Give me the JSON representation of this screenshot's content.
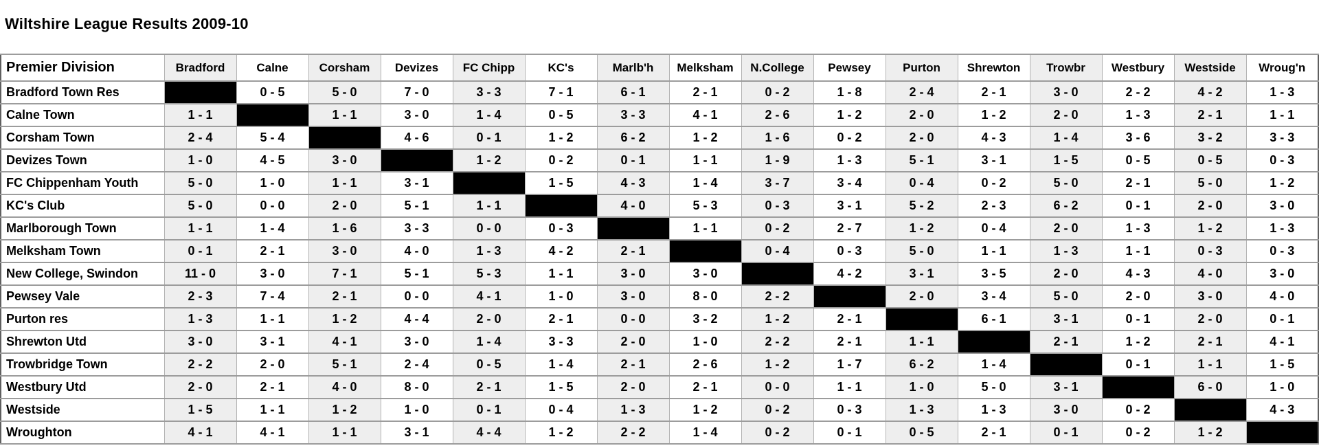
{
  "title": "Wiltshire League Results 2009-10",
  "colors": {
    "shaded_column_bg": "#eeeeee",
    "diagonal_cell_bg": "#000000",
    "horizontal_grid_line": "#9c9c9c",
    "vertical_grid_line": "#b3b3b3"
  },
  "table": {
    "corner_label": "Premier Division",
    "columns": [
      "Bradford",
      "Calne",
      "Corsham",
      "Devizes",
      "FC Chipp",
      "KC's",
      "Marlb'h",
      "Melksham",
      "N.College",
      "Pewsey",
      "Purton",
      "Shrewton",
      "Trowbr",
      "Westbury",
      "Westside",
      "Wroug'n"
    ],
    "rows": [
      {
        "team": "Bradford Town Res",
        "scores": [
          null,
          "0 - 5",
          "5 - 0",
          "7 - 0",
          "3 - 3",
          "7 - 1",
          "6 - 1",
          "2 - 1",
          "0 - 2",
          "1 - 8",
          "2 - 4",
          "2 - 1",
          "3 - 0",
          "2 - 2",
          "4 - 2",
          "1 - 3"
        ]
      },
      {
        "team": "Calne Town",
        "scores": [
          "1 - 1",
          null,
          "1 - 1",
          "3 - 0",
          "1 - 4",
          "0 - 5",
          "3 - 3",
          "4 - 1",
          "2 - 6",
          "1 - 2",
          "2 - 0",
          "1 - 2",
          "2 - 0",
          "1 - 3",
          "2 - 1",
          "1 - 1"
        ]
      },
      {
        "team": "Corsham Town",
        "scores": [
          "2 - 4",
          "5 - 4",
          null,
          "4 - 6",
          "0 - 1",
          "1 - 2",
          "6 - 2",
          "1 - 2",
          "1 - 6",
          "0 - 2",
          "2 - 0",
          "4 - 3",
          "1 - 4",
          "3 - 6",
          "3 - 2",
          "3 - 3"
        ]
      },
      {
        "team": "Devizes Town",
        "scores": [
          "1 - 0",
          "4 - 5",
          "3 - 0",
          null,
          "1 - 2",
          "0 - 2",
          "0 - 1",
          "1 - 1",
          "1 - 9",
          "1 - 3",
          "5 - 1",
          "3 - 1",
          "1 - 5",
          "0 - 5",
          "0 - 5",
          "0 - 3"
        ]
      },
      {
        "team": "FC Chippenham Youth",
        "scores": [
          "5 - 0",
          "1 - 0",
          "1 - 1",
          "3 - 1",
          null,
          "1 - 5",
          "4 - 3",
          "1 - 4",
          "3 - 7",
          "3 - 4",
          "0 - 4",
          "0 - 2",
          "5 - 0",
          "2 - 1",
          "5 - 0",
          "1 - 2"
        ]
      },
      {
        "team": "KC's Club",
        "scores": [
          "5 - 0",
          "0 - 0",
          "2 - 0",
          "5 - 1",
          "1 - 1",
          null,
          "4 - 0",
          "5 - 3",
          "0 - 3",
          "3 - 1",
          "5 - 2",
          "2 - 3",
          "6 - 2",
          "0 - 1",
          "2 - 0",
          "3 - 0"
        ]
      },
      {
        "team": "Marlborough Town",
        "scores": [
          "1 - 1",
          "1 - 4",
          "1 - 6",
          "3 - 3",
          "0 - 0",
          "0 - 3",
          null,
          "1 - 1",
          "0 - 2",
          "2 - 7",
          "1 - 2",
          "0 - 4",
          "2 - 0",
          "1 - 3",
          "1 - 2",
          "1 - 3"
        ]
      },
      {
        "team": "Melksham Town",
        "scores": [
          "0 - 1",
          "2 - 1",
          "3 - 0",
          "4 - 0",
          "1 - 3",
          "4 - 2",
          "2 - 1",
          null,
          "0 - 4",
          "0 - 3",
          "5 - 0",
          "1 - 1",
          "1 - 3",
          "1 - 1",
          "0 - 3",
          "0 - 3"
        ]
      },
      {
        "team": "New College, Swindon",
        "scores": [
          "11 - 0",
          "3 - 0",
          "7 - 1",
          "5 - 1",
          "5 - 3",
          "1 - 1",
          "3 - 0",
          "3 - 0",
          null,
          "4 - 2",
          "3 - 1",
          "3 - 5",
          "2 - 0",
          "4 - 3",
          "4 - 0",
          "3 - 0"
        ]
      },
      {
        "team": "Pewsey Vale",
        "scores": [
          "2 - 3",
          "7 - 4",
          "2 - 1",
          "0 - 0",
          "4 - 1",
          "1 - 0",
          "3 - 0",
          "8 - 0",
          "2 - 2",
          null,
          "2 - 0",
          "3 - 4",
          "5 - 0",
          "2 - 0",
          "3 - 0",
          "4 - 0"
        ]
      },
      {
        "team": "Purton res",
        "scores": [
          "1 - 3",
          "1 - 1",
          "1 - 2",
          "4 - 4",
          "2 - 0",
          "2 - 1",
          "0 - 0",
          "3 - 2",
          "1 - 2",
          "2 - 1",
          null,
          "6 - 1",
          "3 - 1",
          "0 - 1",
          "2 - 0",
          "0 - 1"
        ]
      },
      {
        "team": "Shrewton Utd",
        "scores": [
          "3 - 0",
          "3 - 1",
          "4 - 1",
          "3 - 0",
          "1 - 4",
          "3 - 3",
          "2 - 0",
          "1 - 0",
          "2 - 2",
          "2 - 1",
          "1 - 1",
          null,
          "2 - 1",
          "1 - 2",
          "2 - 1",
          "4 - 1"
        ]
      },
      {
        "team": "Trowbridge Town",
        "scores": [
          "2 - 2",
          "2 - 0",
          "5 - 1",
          "2 - 4",
          "0 - 5",
          "1 - 4",
          "2 - 1",
          "2 - 6",
          "1 - 2",
          "1 - 7",
          "6 - 2",
          "1 - 4",
          null,
          "0 - 1",
          "1 - 1",
          "1 - 5"
        ]
      },
      {
        "team": "Westbury Utd",
        "scores": [
          "2 - 0",
          "2 - 1",
          "4 - 0",
          "8 - 0",
          "2 - 1",
          "1 - 5",
          "2 - 0",
          "2 - 1",
          "0 - 0",
          "1 - 1",
          "1 - 0",
          "5 - 0",
          "3 - 1",
          null,
          "6 - 0",
          "1 - 0"
        ]
      },
      {
        "team": "Westside",
        "scores": [
          "1 - 5",
          "1 - 1",
          "1 - 2",
          "1 - 0",
          "0 - 1",
          "0 - 4",
          "1 - 3",
          "1 - 2",
          "0 - 2",
          "0 - 3",
          "1 - 3",
          "1 - 3",
          "3 - 0",
          "0 - 2",
          null,
          "4 - 3"
        ]
      },
      {
        "team": "Wroughton",
        "scores": [
          "4 - 1",
          "4 - 1",
          "1 - 1",
          "3 - 1",
          "4 - 4",
          "1 - 2",
          "2 - 2",
          "1 - 4",
          "0 - 2",
          "0 - 1",
          "0 - 5",
          "2 - 1",
          "0 - 1",
          "0 - 2",
          "1 - 2",
          null
        ]
      }
    ]
  }
}
